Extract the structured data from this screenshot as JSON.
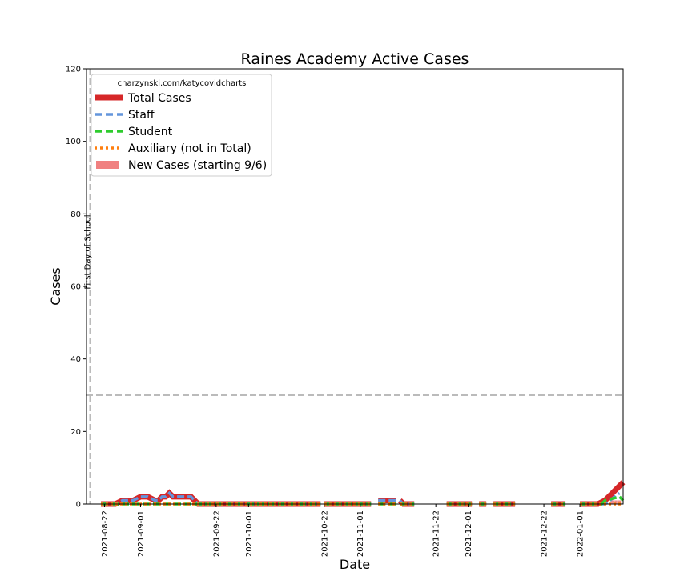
{
  "chart_data": {
    "type": "line",
    "title": "Raines Academy Active Cases",
    "xlabel": "Date",
    "ylabel": "Cases",
    "ylim": [
      0,
      120
    ],
    "xlim": [
      "2021-08-17",
      "2022-01-13"
    ],
    "yticks": [
      "0",
      "20",
      "40",
      "60",
      "80",
      "100",
      "120"
    ],
    "xticks": [
      {
        "date": "2021-08-22",
        "label": "2021-08-22"
      },
      {
        "date": "2021-09-01",
        "label": "2021-09-01"
      },
      {
        "date": "2021-09-22",
        "label": "2021-09-22"
      },
      {
        "date": "2021-10-01",
        "label": "2021-10-01"
      },
      {
        "date": "2021-10-22",
        "label": "2021-10-22"
      },
      {
        "date": "2021-11-01",
        "label": "2021-11-01"
      },
      {
        "date": "2021-11-22",
        "label": "2021-11-22"
      },
      {
        "date": "2021-12-01",
        "label": "2021-12-01"
      },
      {
        "date": "2021-12-22",
        "label": "2021-12-22"
      },
      {
        "date": "2022-01-01",
        "label": "2022-01-01"
      }
    ],
    "grid": false,
    "legend_position": "upper-left",
    "legend_title": "charzynski.com/katycovidcharts",
    "annotations": [
      {
        "type": "vline",
        "date": "2021-08-18",
        "label": "First Day of School",
        "color": "#bbbbbb"
      },
      {
        "type": "hline",
        "y": 30,
        "color": "#bbbbbb"
      }
    ],
    "series": [
      {
        "name": "Total Cases",
        "color": "#d62728",
        "style": "solid",
        "segments": [
          [
            [
              "2021-08-21",
              0
            ],
            [
              "2021-08-25",
              0
            ],
            [
              "2021-08-27",
              1
            ],
            [
              "2021-08-30",
              1
            ],
            [
              "2021-09-01",
              2
            ],
            [
              "2021-09-03",
              2
            ],
            [
              "2021-09-05",
              1
            ],
            [
              "2021-09-06",
              1
            ],
            [
              "2021-09-07",
              2
            ],
            [
              "2021-09-08",
              2
            ],
            [
              "2021-09-09",
              3
            ],
            [
              "2021-09-10",
              2
            ],
            [
              "2021-09-15",
              2
            ],
            [
              "2021-09-16",
              1
            ],
            [
              "2021-09-17",
              0
            ],
            [
              "2021-10-21",
              0
            ]
          ],
          [
            [
              "2021-10-22",
              0
            ],
            [
              "2021-11-04",
              0
            ]
          ],
          [
            [
              "2021-11-06",
              1
            ],
            [
              "2021-11-11",
              1
            ]
          ],
          [
            [
              "2021-11-12",
              1
            ],
            [
              "2021-11-13",
              0
            ],
            [
              "2021-11-16",
              0
            ]
          ],
          [
            [
              "2021-11-25",
              0
            ],
            [
              "2021-12-02",
              0
            ]
          ],
          [
            [
              "2021-12-04",
              0
            ],
            [
              "2021-12-06",
              0
            ]
          ],
          [
            [
              "2021-12-08",
              0
            ],
            [
              "2021-12-14",
              0
            ]
          ],
          [
            [
              "2021-12-24",
              0
            ],
            [
              "2021-12-28",
              0
            ]
          ],
          [
            [
              "2022-01-01",
              0
            ],
            [
              "2022-01-06",
              0
            ],
            [
              "2022-01-08",
              1
            ],
            [
              "2022-01-13",
              6
            ]
          ]
        ]
      },
      {
        "name": "Staff",
        "color": "#6495dc",
        "style": "dash",
        "segments": [
          [
            [
              "2021-08-21",
              0
            ],
            [
              "2021-08-25",
              0
            ],
            [
              "2021-08-27",
              1
            ],
            [
              "2021-08-30",
              1
            ],
            [
              "2021-09-01",
              2
            ],
            [
              "2021-09-03",
              2
            ],
            [
              "2021-09-05",
              1
            ],
            [
              "2021-09-06",
              1
            ],
            [
              "2021-09-07",
              2
            ],
            [
              "2021-09-08",
              2
            ],
            [
              "2021-09-09",
              3
            ],
            [
              "2021-09-10",
              2
            ],
            [
              "2021-09-15",
              2
            ],
            [
              "2021-09-16",
              1
            ],
            [
              "2021-09-17",
              0
            ],
            [
              "2021-10-21",
              0
            ]
          ],
          [
            [
              "2021-10-22",
              0
            ],
            [
              "2021-11-04",
              0
            ]
          ],
          [
            [
              "2021-11-06",
              1
            ],
            [
              "2021-11-11",
              1
            ]
          ],
          [
            [
              "2021-11-12",
              1
            ],
            [
              "2021-11-13",
              0
            ],
            [
              "2021-11-16",
              0
            ]
          ],
          [
            [
              "2021-11-25",
              0
            ],
            [
              "2021-12-02",
              0
            ]
          ],
          [
            [
              "2021-12-04",
              0
            ],
            [
              "2021-12-06",
              0
            ]
          ],
          [
            [
              "2021-12-08",
              0
            ],
            [
              "2021-12-14",
              0
            ]
          ],
          [
            [
              "2021-12-24",
              0
            ],
            [
              "2021-12-28",
              0
            ]
          ],
          [
            [
              "2022-01-01",
              0
            ],
            [
              "2022-01-08",
              0
            ],
            [
              "2022-01-12",
              3
            ]
          ]
        ]
      },
      {
        "name": "Student",
        "color": "#2ecc2e",
        "style": "dash",
        "segments": [
          [
            [
              "2021-08-21",
              0
            ],
            [
              "2021-10-21",
              0
            ]
          ],
          [
            [
              "2021-10-22",
              0
            ],
            [
              "2021-11-04",
              0
            ]
          ],
          [
            [
              "2021-11-06",
              0
            ],
            [
              "2021-11-11",
              0
            ]
          ],
          [
            [
              "2021-11-12",
              0
            ],
            [
              "2021-11-16",
              0
            ]
          ],
          [
            [
              "2021-11-25",
              0
            ],
            [
              "2021-12-02",
              0
            ]
          ],
          [
            [
              "2021-12-04",
              0
            ],
            [
              "2021-12-06",
              0
            ]
          ],
          [
            [
              "2021-12-08",
              0
            ],
            [
              "2021-12-14",
              0
            ]
          ],
          [
            [
              "2021-12-24",
              0
            ],
            [
              "2021-12-28",
              0
            ]
          ],
          [
            [
              "2022-01-01",
              0
            ],
            [
              "2022-01-07",
              0
            ],
            [
              "2022-01-08",
              1
            ],
            [
              "2022-01-12",
              2
            ],
            [
              "2022-01-13",
              1
            ]
          ]
        ]
      },
      {
        "name": "Auxiliary (not in Total)",
        "color": "#ff7f0e",
        "style": "dot",
        "segments": [
          [
            [
              "2021-08-21",
              0
            ],
            [
              "2021-10-21",
              0
            ]
          ],
          [
            [
              "2021-10-22",
              0
            ],
            [
              "2021-11-04",
              0
            ]
          ],
          [
            [
              "2021-11-06",
              0
            ],
            [
              "2021-11-11",
              0
            ]
          ],
          [
            [
              "2021-11-12",
              0
            ],
            [
              "2021-11-16",
              0
            ]
          ],
          [
            [
              "2021-11-25",
              0
            ],
            [
              "2021-12-02",
              0
            ]
          ],
          [
            [
              "2021-12-04",
              0
            ],
            [
              "2021-12-06",
              0
            ]
          ],
          [
            [
              "2021-12-08",
              0
            ],
            [
              "2021-12-14",
              0
            ]
          ],
          [
            [
              "2021-12-24",
              0
            ],
            [
              "2021-12-28",
              0
            ]
          ],
          [
            [
              "2022-01-01",
              0
            ],
            [
              "2022-01-13",
              0
            ]
          ]
        ]
      },
      {
        "name": "New Cases (starting 9/6)",
        "color": "#f08080",
        "style": "bar",
        "points": [
          [
            "2022-01-10",
            1
          ],
          [
            "2022-01-11",
            1
          ],
          [
            "2022-01-12",
            1
          ]
        ]
      }
    ]
  }
}
